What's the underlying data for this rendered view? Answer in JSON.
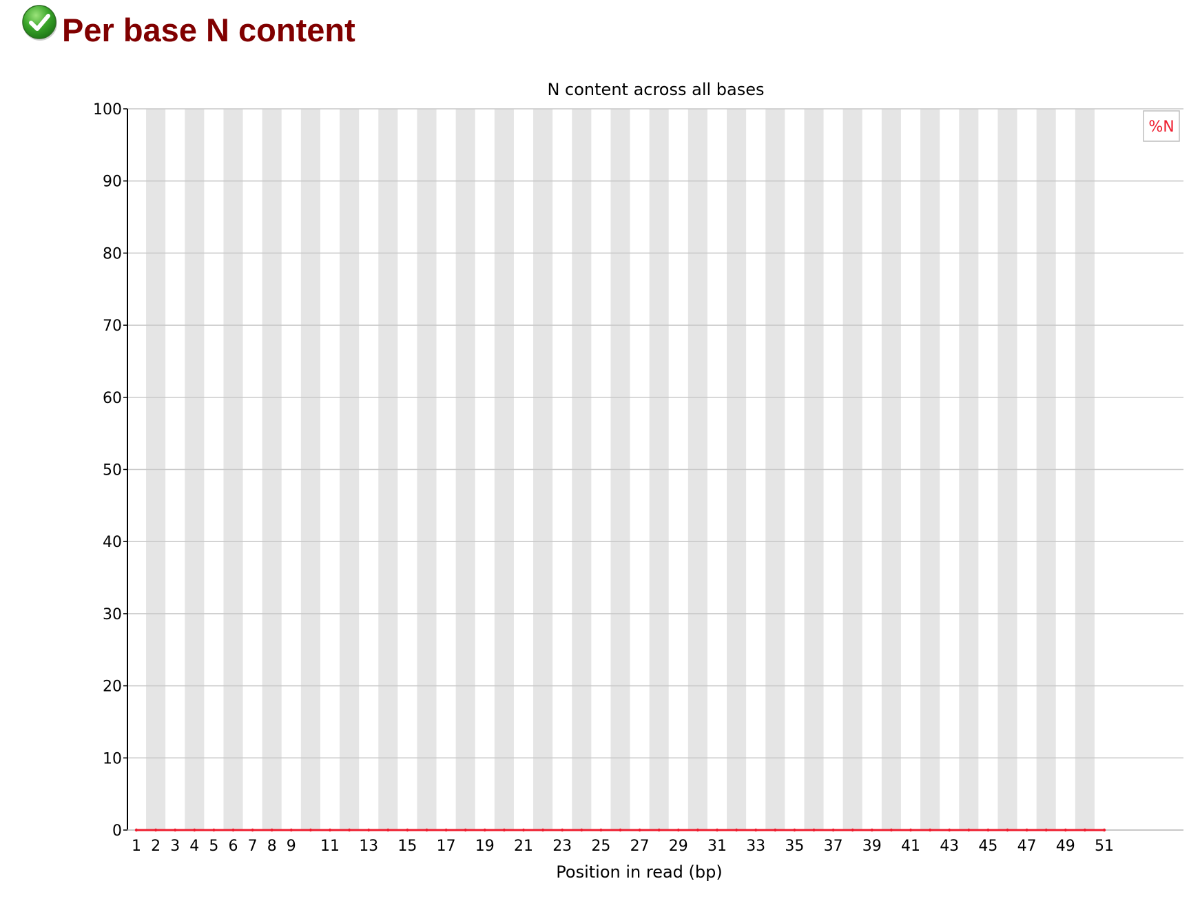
{
  "module": {
    "title": "Per base N content",
    "status": "pass",
    "status_icon": "check-circle-icon",
    "title_color": "#800000"
  },
  "chart_data": {
    "type": "line",
    "title": "N content across all bases",
    "xlabel": "Position in read (bp)",
    "ylabel": "",
    "ylim": [
      0,
      100
    ],
    "y_ticks": [
      0,
      10,
      20,
      30,
      40,
      50,
      60,
      70,
      80,
      90,
      100
    ],
    "x_tick_labels": [
      "1",
      "2",
      "3",
      "4",
      "5",
      "6",
      "7",
      "8",
      "9",
      "11",
      "13",
      "15",
      "17",
      "19",
      "21",
      "23",
      "25",
      "27",
      "29",
      "31",
      "33",
      "35",
      "37",
      "39",
      "41",
      "43",
      "45",
      "47",
      "49",
      "51"
    ],
    "x": [
      1,
      2,
      3,
      4,
      5,
      6,
      7,
      8,
      9,
      10,
      11,
      12,
      13,
      14,
      15,
      16,
      17,
      18,
      19,
      20,
      21,
      22,
      23,
      24,
      25,
      26,
      27,
      28,
      29,
      30,
      31,
      32,
      33,
      34,
      35,
      36,
      37,
      38,
      39,
      40,
      41,
      42,
      43,
      44,
      45,
      46,
      47,
      48,
      49,
      50,
      51
    ],
    "series": [
      {
        "name": "%N",
        "color": "#ee1c2e",
        "values": [
          0,
          0,
          0,
          0,
          0,
          0,
          0,
          0,
          0,
          0,
          0,
          0,
          0,
          0,
          0,
          0,
          0,
          0,
          0,
          0,
          0,
          0,
          0,
          0,
          0,
          0,
          0,
          0,
          0,
          0,
          0,
          0,
          0,
          0,
          0,
          0,
          0,
          0,
          0,
          0,
          0,
          0,
          0,
          0,
          0,
          0,
          0,
          0,
          0,
          0,
          0
        ]
      }
    ],
    "legend_position": "top-right",
    "grid": true,
    "band_color": "#e5e5e5",
    "grid_color": "#c8c8c8",
    "axis_color": "#000000"
  }
}
